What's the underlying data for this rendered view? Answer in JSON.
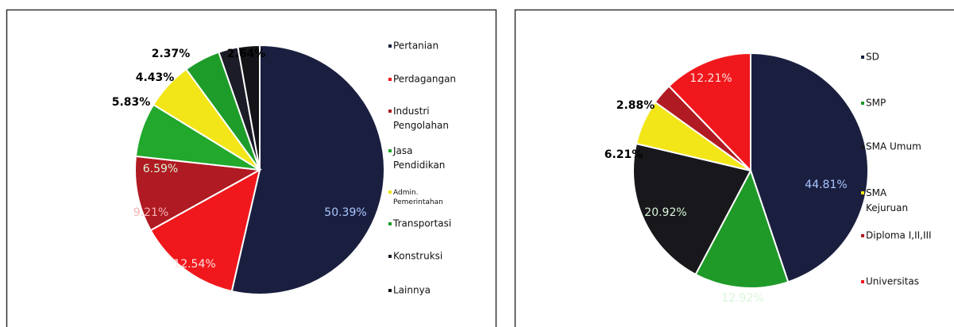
{
  "chart_data": [
    {
      "type": "pie",
      "categories": [
        "Pertanian",
        "Perdagangan",
        "Industri Pengolahan",
        "Jasa Pendidikan",
        "Admin. Pemerintahan",
        "Transportasi",
        "Konstruksi",
        "Lainnya"
      ],
      "values": [
        50.39,
        12.54,
        9.21,
        6.59,
        5.83,
        4.43,
        2.37,
        2.64
      ],
      "value_labels": [
        "50.39%",
        "12.54%",
        "9.21%",
        "6.59%",
        "5.83%",
        "4.43%",
        "2.37%",
        "2.64%"
      ],
      "colors": [
        "#1b1f3f",
        "#f0181c",
        "#b01a22",
        "#22a82c",
        "#f2e619",
        "#1e9c2a",
        "#1c1c28",
        "#141418"
      ]
    },
    {
      "type": "pie",
      "categories": [
        "SD",
        "SMP",
        "SMA Umum",
        "SMA Kejuruan",
        "Diploma I,II,III",
        "Universitas"
      ],
      "values": [
        44.81,
        12.92,
        20.92,
        6.21,
        2.88,
        12.21
      ],
      "value_labels": [
        "44.81%",
        "12.92%",
        "20.92%",
        "6.21%",
        "2.88%",
        "12.21%"
      ],
      "colors": [
        "#1b1f3f",
        "#1f9a28",
        "#18181c",
        "#f2e619",
        "#b01a22",
        "#f0181c"
      ]
    }
  ]
}
